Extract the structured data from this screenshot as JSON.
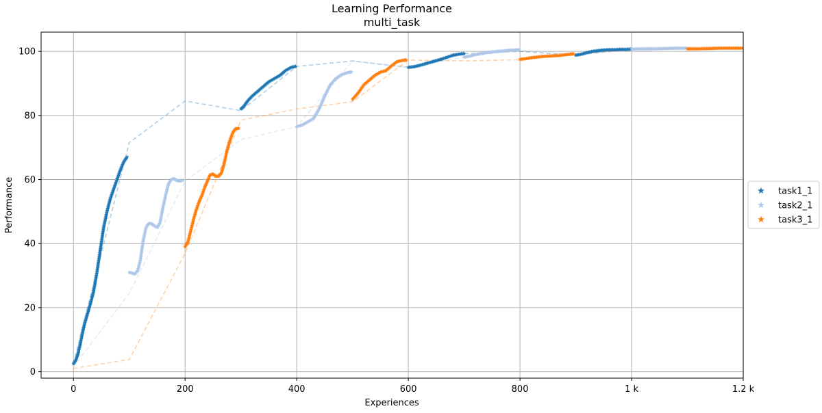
{
  "chart_data": {
    "type": "scatter",
    "title": "Learning Performance",
    "subtitle": "multi_task",
    "xlabel": "Experiences",
    "ylabel": "Performance",
    "xlim": [
      -58,
      1200
    ],
    "ylim": [
      -2,
      106
    ],
    "xticks": [
      {
        "value": 0,
        "label": "0"
      },
      {
        "value": 200,
        "label": "200"
      },
      {
        "value": 400,
        "label": "400"
      },
      {
        "value": 600,
        "label": "600"
      },
      {
        "value": 800,
        "label": "800"
      },
      {
        "value": 1000,
        "label": "1 k"
      },
      {
        "value": 1200,
        "label": "1.2 k"
      }
    ],
    "yticks": [
      {
        "value": 0,
        "label": "0"
      },
      {
        "value": 20,
        "label": "20"
      },
      {
        "value": 40,
        "label": "40"
      },
      {
        "value": 60,
        "label": "60"
      },
      {
        "value": 80,
        "label": "80"
      },
      {
        "value": 100,
        "label": "100"
      }
    ],
    "grid": true,
    "legend_position": "outside-right",
    "series": [
      {
        "name": "task1_1",
        "color": "#1f77b4",
        "marker": "star",
        "segments": [
          {
            "points": [
              [
                0,
                2.5
              ],
              [
                4,
                3.5
              ],
              [
                8,
                5.5
              ],
              [
                12,
                8.5
              ],
              [
                16,
                12
              ],
              [
                20,
                15
              ],
              [
                25,
                18
              ],
              [
                30,
                21
              ],
              [
                36,
                25
              ],
              [
                42,
                31
              ],
              [
                48,
                38
              ],
              [
                54,
                45
              ],
              [
                60,
                50
              ],
              [
                66,
                54
              ],
              [
                72,
                57
              ],
              [
                78,
                60
              ],
              [
                84,
                63
              ],
              [
                90,
                65.5
              ],
              [
                96,
                67
              ]
            ]
          },
          {
            "points": [
              [
                300,
                82
              ],
              [
                306,
                83
              ],
              [
                312,
                84.5
              ],
              [
                320,
                86
              ],
              [
                330,
                87.5
              ],
              [
                340,
                89
              ],
              [
                350,
                90.5
              ],
              [
                360,
                91.5
              ],
              [
                370,
                92.5
              ],
              [
                380,
                94
              ],
              [
                390,
                95
              ],
              [
                398,
                95.3
              ]
            ]
          },
          {
            "points": [
              [
                600,
                95
              ],
              [
                610,
                95.2
              ],
              [
                620,
                95.6
              ],
              [
                630,
                96.1
              ],
              [
                640,
                96.6
              ],
              [
                650,
                97.1
              ],
              [
                660,
                97.6
              ],
              [
                670,
                98.2
              ],
              [
                680,
                98.8
              ],
              [
                690,
                99.1
              ],
              [
                700,
                99.3
              ]
            ]
          },
          {
            "points": [
              [
                900,
                98.8
              ],
              [
                910,
                99.1
              ],
              [
                920,
                99.6
              ],
              [
                930,
                100
              ],
              [
                940,
                100.2
              ],
              [
                950,
                100.4
              ],
              [
                960,
                100.5
              ],
              [
                970,
                100.5
              ],
              [
                980,
                100.6
              ],
              [
                990,
                100.6
              ],
              [
                1000,
                100.7
              ]
            ]
          }
        ],
        "trend": [
          [
            0,
            2.5
          ],
          [
            100,
            71.5
          ],
          [
            200,
            84.5
          ],
          [
            300,
            81.5
          ],
          [
            400,
            95.3
          ],
          [
            500,
            97
          ],
          [
            600,
            95
          ],
          [
            700,
            99.3
          ],
          [
            800,
            100
          ],
          [
            900,
            98.8
          ],
          [
            1000,
            100.7
          ],
          [
            1100,
            100.8
          ],
          [
            1200,
            101
          ]
        ]
      },
      {
        "name": "task2_1",
        "color": "#aec7e8",
        "marker": "star",
        "segments": [
          {
            "points": [
              [
                100,
                31
              ],
              [
                105,
                30.8
              ],
              [
                110,
                30.5
              ],
              [
                115,
                31.5
              ],
              [
                120,
                35
              ],
              [
                125,
                41
              ],
              [
                130,
                45
              ],
              [
                135,
                46.3
              ],
              [
                140,
                46.2
              ],
              [
                145,
                45.5
              ],
              [
                150,
                45
              ],
              [
                155,
                46.5
              ],
              [
                160,
                51
              ],
              [
                165,
                55
              ],
              [
                170,
                58.5
              ],
              [
                175,
                60
              ],
              [
                180,
                60.3
              ],
              [
                185,
                59.7
              ],
              [
                190,
                59.5
              ],
              [
                196,
                59.8
              ]
            ]
          },
          {
            "points": [
              [
                400,
                76.5
              ],
              [
                410,
                77
              ],
              [
                420,
                78
              ],
              [
                430,
                79
              ],
              [
                440,
                82
              ],
              [
                450,
                86
              ],
              [
                460,
                89.5
              ],
              [
                470,
                91.5
              ],
              [
                480,
                92.7
              ],
              [
                490,
                93.3
              ],
              [
                498,
                93.6
              ]
            ]
          },
          {
            "points": [
              [
                700,
                98.2
              ],
              [
                710,
                98.5
              ],
              [
                720,
                99
              ],
              [
                730,
                99.3
              ],
              [
                740,
                99.6
              ],
              [
                750,
                99.8
              ],
              [
                760,
                100
              ],
              [
                770,
                100.1
              ],
              [
                780,
                100.3
              ],
              [
                790,
                100.4
              ],
              [
                798,
                100.5
              ]
            ]
          },
          {
            "points": [
              [
                1000,
                100.7
              ],
              [
                1020,
                100.8
              ],
              [
                1040,
                100.8
              ],
              [
                1060,
                100.9
              ],
              [
                1080,
                101
              ],
              [
                1098,
                101
              ]
            ]
          }
        ],
        "trend": [
          [
            0,
            1.5
          ],
          [
            100,
            24.5
          ],
          [
            200,
            59.5
          ],
          [
            300,
            72.5
          ],
          [
            400,
            76.5
          ],
          [
            500,
            97
          ],
          [
            600,
            95
          ],
          [
            700,
            98.2
          ],
          [
            800,
            100.5
          ],
          [
            900,
            99
          ],
          [
            1000,
            100.7
          ],
          [
            1100,
            101
          ],
          [
            1200,
            101
          ]
        ]
      },
      {
        "name": "task3_1",
        "color": "#ff7f0e",
        "marker": "star",
        "segments": [
          {
            "points": [
              [
                200,
                39
              ],
              [
                205,
                40.5
              ],
              [
                210,
                44
              ],
              [
                215,
                47.5
              ],
              [
                220,
                50.5
              ],
              [
                225,
                53
              ],
              [
                230,
                55
              ],
              [
                235,
                57.5
              ],
              [
                240,
                59.5
              ],
              [
                245,
                61.5
              ],
              [
                250,
                61.7
              ],
              [
                255,
                61
              ],
              [
                260,
                61
              ],
              [
                265,
                62
              ],
              [
                270,
                65
              ],
              [
                275,
                69
              ],
              [
                280,
                72
              ],
              [
                285,
                74.5
              ],
              [
                290,
                75.8
              ],
              [
                296,
                76
              ]
            ]
          },
          {
            "points": [
              [
                500,
                85
              ],
              [
                510,
                87
              ],
              [
                520,
                89.5
              ],
              [
                530,
                91
              ],
              [
                540,
                92.5
              ],
              [
                550,
                93.5
              ],
              [
                560,
                94
              ],
              [
                570,
                95.5
              ],
              [
                580,
                96.8
              ],
              [
                590,
                97.2
              ],
              [
                596,
                97.3
              ]
            ]
          },
          {
            "points": [
              [
                800,
                97.5
              ],
              [
                810,
                97.7
              ],
              [
                820,
                98
              ],
              [
                830,
                98.2
              ],
              [
                840,
                98.4
              ],
              [
                850,
                98.5
              ],
              [
                860,
                98.6
              ],
              [
                870,
                98.7
              ],
              [
                880,
                98.9
              ],
              [
                890,
                99.1
              ],
              [
                896,
                99.2
              ]
            ]
          },
          {
            "points": [
              [
                1100,
                100.8
              ],
              [
                1120,
                100.8
              ],
              [
                1140,
                100.9
              ],
              [
                1160,
                101
              ],
              [
                1180,
                101
              ],
              [
                1198,
                101
              ]
            ]
          }
        ],
        "trend": [
          [
            0,
            1
          ],
          [
            100,
            3.8
          ],
          [
            200,
            37
          ],
          [
            300,
            78.5
          ],
          [
            400,
            82
          ],
          [
            500,
            84.3
          ],
          [
            600,
            97.3
          ],
          [
            700,
            97
          ],
          [
            800,
            97.4
          ],
          [
            900,
            99.2
          ],
          [
            1000,
            100.5
          ],
          [
            1100,
            100.8
          ],
          [
            1200,
            101
          ]
        ]
      }
    ]
  }
}
